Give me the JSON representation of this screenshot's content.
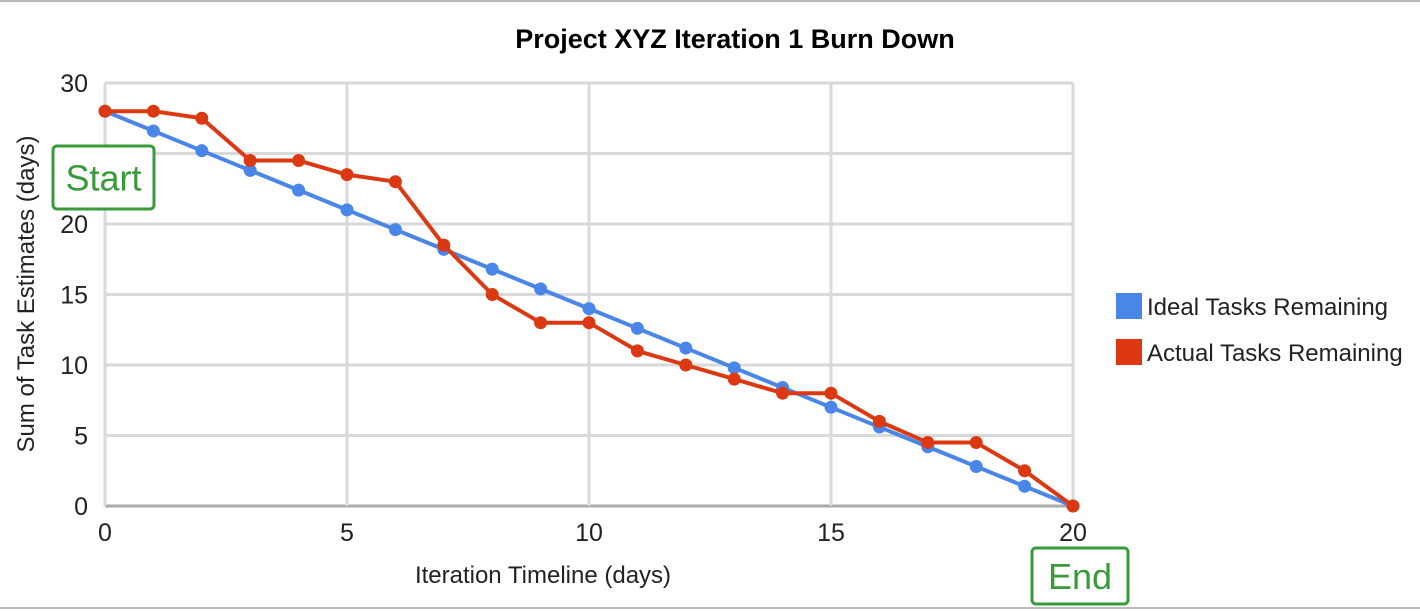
{
  "chart_data": {
    "type": "line",
    "title": "Project XYZ Iteration 1 Burn Down",
    "xlabel": "Iteration Timeline (days)",
    "ylabel": "Sum of Task Estimates (days)",
    "xlim": [
      0,
      20
    ],
    "ylim": [
      0,
      30
    ],
    "x_ticks": [
      0,
      5,
      10,
      15,
      20
    ],
    "y_ticks": [
      0,
      5,
      10,
      15,
      20,
      25,
      30
    ],
    "grid": true,
    "legend_position": "right",
    "x": [
      0,
      1,
      2,
      3,
      4,
      5,
      6,
      7,
      8,
      9,
      10,
      11,
      12,
      13,
      14,
      15,
      16,
      17,
      18,
      19,
      20
    ],
    "series": [
      {
        "name": "Ideal Tasks Remaining",
        "color": "#4a86e8",
        "values": [
          28,
          26.6,
          25.2,
          23.8,
          22.4,
          21,
          19.6,
          18.2,
          16.8,
          15.4,
          14,
          12.6,
          11.2,
          9.8,
          8.4,
          7,
          5.6,
          4.2,
          2.8,
          1.4,
          0
        ]
      },
      {
        "name": "Actual Tasks Remaining",
        "color": "#dc3912",
        "values": [
          28,
          28,
          27.5,
          24.5,
          24.5,
          23.5,
          23,
          18.5,
          15,
          13,
          13,
          11,
          10,
          9,
          8,
          8,
          6,
          4.5,
          4.5,
          2.5,
          0
        ]
      }
    ],
    "annotations": [
      {
        "id": "start",
        "text": "Start",
        "color": "#3a9a3a"
      },
      {
        "id": "end",
        "text": "End",
        "color": "#3a9a3a"
      }
    ]
  }
}
